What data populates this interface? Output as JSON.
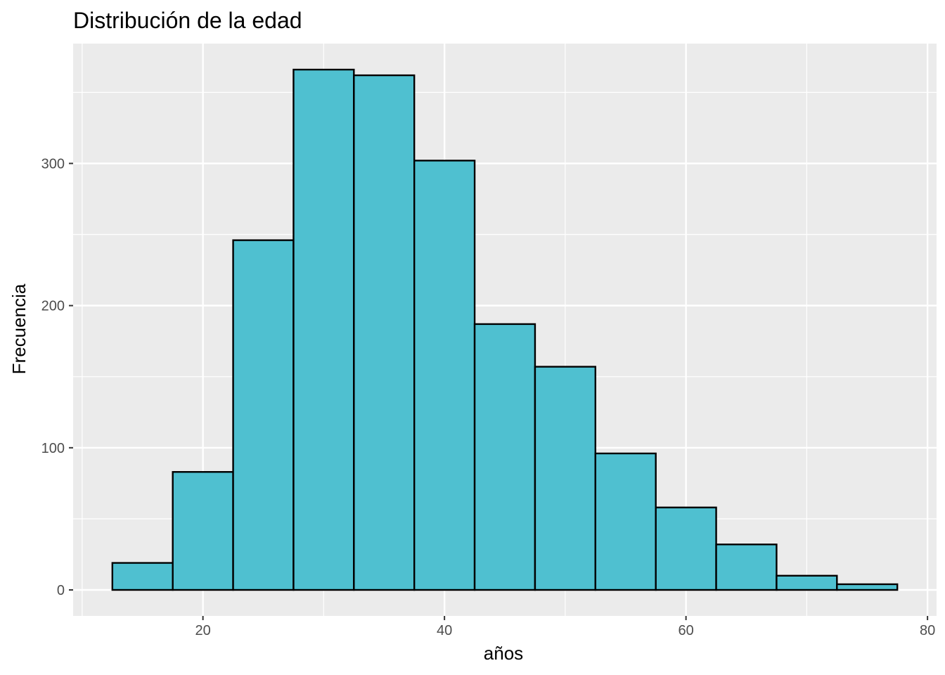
{
  "chart_data": {
    "type": "bar",
    "title": "Distribución de la edad",
    "xlabel": "años",
    "ylabel": "Frecuencia",
    "bin_width": 5,
    "bins": [
      {
        "start": 12.5,
        "end": 17.5,
        "count": 19
      },
      {
        "start": 17.5,
        "end": 22.5,
        "count": 83
      },
      {
        "start": 22.5,
        "end": 27.5,
        "count": 246
      },
      {
        "start": 27.5,
        "end": 32.5,
        "count": 366
      },
      {
        "start": 32.5,
        "end": 37.5,
        "count": 362
      },
      {
        "start": 37.5,
        "end": 42.5,
        "count": 302
      },
      {
        "start": 42.5,
        "end": 47.5,
        "count": 187
      },
      {
        "start": 47.5,
        "end": 52.5,
        "count": 157
      },
      {
        "start": 52.5,
        "end": 57.5,
        "count": 96
      },
      {
        "start": 57.5,
        "end": 62.5,
        "count": 58
      },
      {
        "start": 62.5,
        "end": 67.5,
        "count": 32
      },
      {
        "start": 67.5,
        "end": 72.5,
        "count": 10
      },
      {
        "start": 72.5,
        "end": 77.5,
        "count": 4
      }
    ],
    "xlim": [
      9.25,
      80.75
    ],
    "ylim": [
      -18.3,
      384.3
    ],
    "x_ticks": [
      20,
      40,
      60,
      80
    ],
    "x_minor_ticks": [
      10,
      30,
      50,
      70
    ],
    "y_ticks": [
      0,
      100,
      200,
      300
    ],
    "y_minor_ticks": [
      50,
      150,
      250,
      350
    ],
    "grid": true,
    "legend": "none",
    "colors": {
      "bar_fill": "#4FC0D0",
      "bar_stroke": "#000000",
      "panel_background": "#EBEBEB",
      "grid": "#FFFFFF"
    }
  }
}
